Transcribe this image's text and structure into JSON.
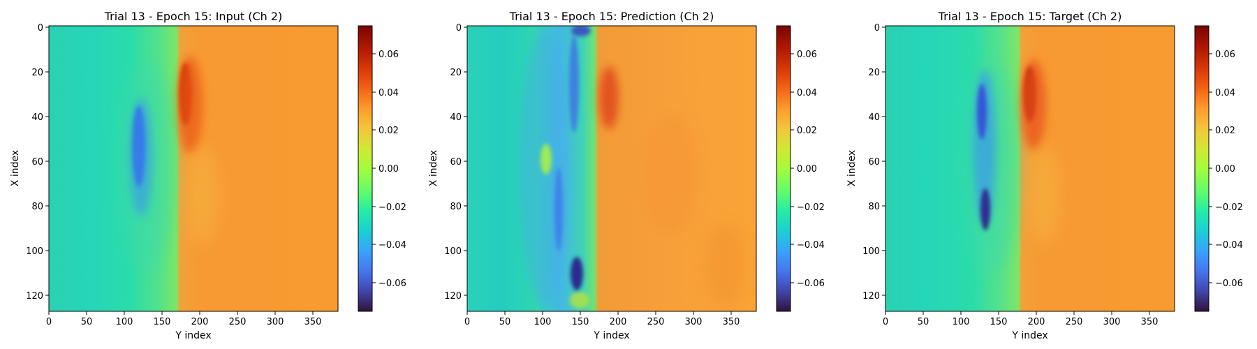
{
  "figure": {
    "panels": [
      {
        "title": "Trial 13 - Epoch 15: Input (Ch 2)",
        "xlabel": "Y index",
        "ylabel": "X index",
        "xticks": [
          0,
          50,
          100,
          150,
          200,
          250,
          300,
          350
        ],
        "yticks": [
          0,
          20,
          40,
          60,
          80,
          100,
          120
        ],
        "colorbar_ticks": [
          "0.06",
          "0.04",
          "0.02",
          "0.00",
          "−0.02",
          "−0.04",
          "−0.06"
        ]
      },
      {
        "title": "Trial 13 - Epoch 15: Prediction (Ch 2)",
        "xlabel": "Y index",
        "ylabel": "X index",
        "xticks": [
          0,
          50,
          100,
          150,
          200,
          250,
          300,
          350
        ],
        "yticks": [
          0,
          20,
          40,
          60,
          80,
          100,
          120
        ],
        "colorbar_ticks": [
          "0.06",
          "0.04",
          "0.02",
          "0.00",
          "−0.02",
          "−0.04",
          "−0.06"
        ]
      },
      {
        "title": "Trial 13 - Epoch 15: Target (Ch 2)",
        "xlabel": "Y index",
        "ylabel": "X index",
        "xticks": [
          0,
          50,
          100,
          150,
          200,
          250,
          300,
          350
        ],
        "yticks": [
          0,
          20,
          40,
          60,
          80,
          100,
          120
        ],
        "colorbar_ticks": [
          "0.06",
          "0.04",
          "0.02",
          "0.00",
          "−0.02",
          "−0.04",
          "−0.06"
        ]
      }
    ]
  },
  "chart_data": [
    {
      "type": "heatmap",
      "title": "Trial 13 - Epoch 15: Input (Ch 2)",
      "xlabel": "Y index",
      "ylabel": "X index",
      "xlim": [
        0,
        384
      ],
      "ylim": [
        128,
        0
      ],
      "colormap": "turbo",
      "vmin": -0.075,
      "vmax": 0.075,
      "front_y_at_x": [
        [
          0,
          178
        ],
        [
          20,
          176
        ],
        [
          40,
          170
        ],
        [
          60,
          165
        ],
        [
          80,
          165
        ],
        [
          100,
          170
        ],
        [
          128,
          175
        ]
      ],
      "regions": [
        {
          "name": "left",
          "y_range": [
            0,
            175
          ],
          "value": -0.018
        },
        {
          "name": "right",
          "y_range": [
            180,
            384
          ],
          "value": 0.035
        },
        {
          "name": "minimum",
          "x": 60,
          "y": 130,
          "value": -0.055
        },
        {
          "name": "maximum",
          "x": 30,
          "y": 180,
          "value": 0.065
        }
      ]
    },
    {
      "type": "heatmap",
      "title": "Trial 13 - Epoch 15: Prediction (Ch 2)",
      "xlabel": "Y index",
      "ylabel": "X index",
      "xlim": [
        0,
        384
      ],
      "ylim": [
        128,
        0
      ],
      "colormap": "turbo",
      "vmin": -0.075,
      "vmax": 0.075,
      "front_y_at_x": [
        [
          0,
          170
        ],
        [
          20,
          175
        ],
        [
          40,
          170
        ],
        [
          60,
          172
        ],
        [
          80,
          172
        ],
        [
          100,
          170
        ],
        [
          128,
          170
        ]
      ],
      "regions": [
        {
          "name": "left",
          "y_range": [
            0,
            170
          ],
          "value": -0.022
        },
        {
          "name": "right",
          "y_range": [
            175,
            384
          ],
          "value": 0.035
        },
        {
          "name": "minimum",
          "x": 112,
          "y": 145,
          "value": -0.07
        },
        {
          "name": "maximum",
          "x": 30,
          "y": 190,
          "value": 0.05
        }
      ]
    },
    {
      "type": "heatmap",
      "title": "Trial 13 - Epoch 15: Target (Ch 2)",
      "xlabel": "Y index",
      "ylabel": "X index",
      "xlim": [
        0,
        384
      ],
      "ylim": [
        128,
        0
      ],
      "colormap": "turbo",
      "vmin": -0.075,
      "vmax": 0.075,
      "front_y_at_x": [
        [
          0,
          182
        ],
        [
          20,
          180
        ],
        [
          40,
          178
        ],
        [
          60,
          178
        ],
        [
          80,
          178
        ],
        [
          100,
          180
        ],
        [
          128,
          182
        ]
      ],
      "regions": [
        {
          "name": "left",
          "y_range": [
            0,
            178
          ],
          "value": -0.018
        },
        {
          "name": "right",
          "y_range": [
            182,
            384
          ],
          "value": 0.035
        },
        {
          "name": "minimum",
          "x": 83,
          "y": 133,
          "value": -0.07
        },
        {
          "name": "maximum",
          "x": 30,
          "y": 185,
          "value": 0.068
        }
      ]
    }
  ]
}
